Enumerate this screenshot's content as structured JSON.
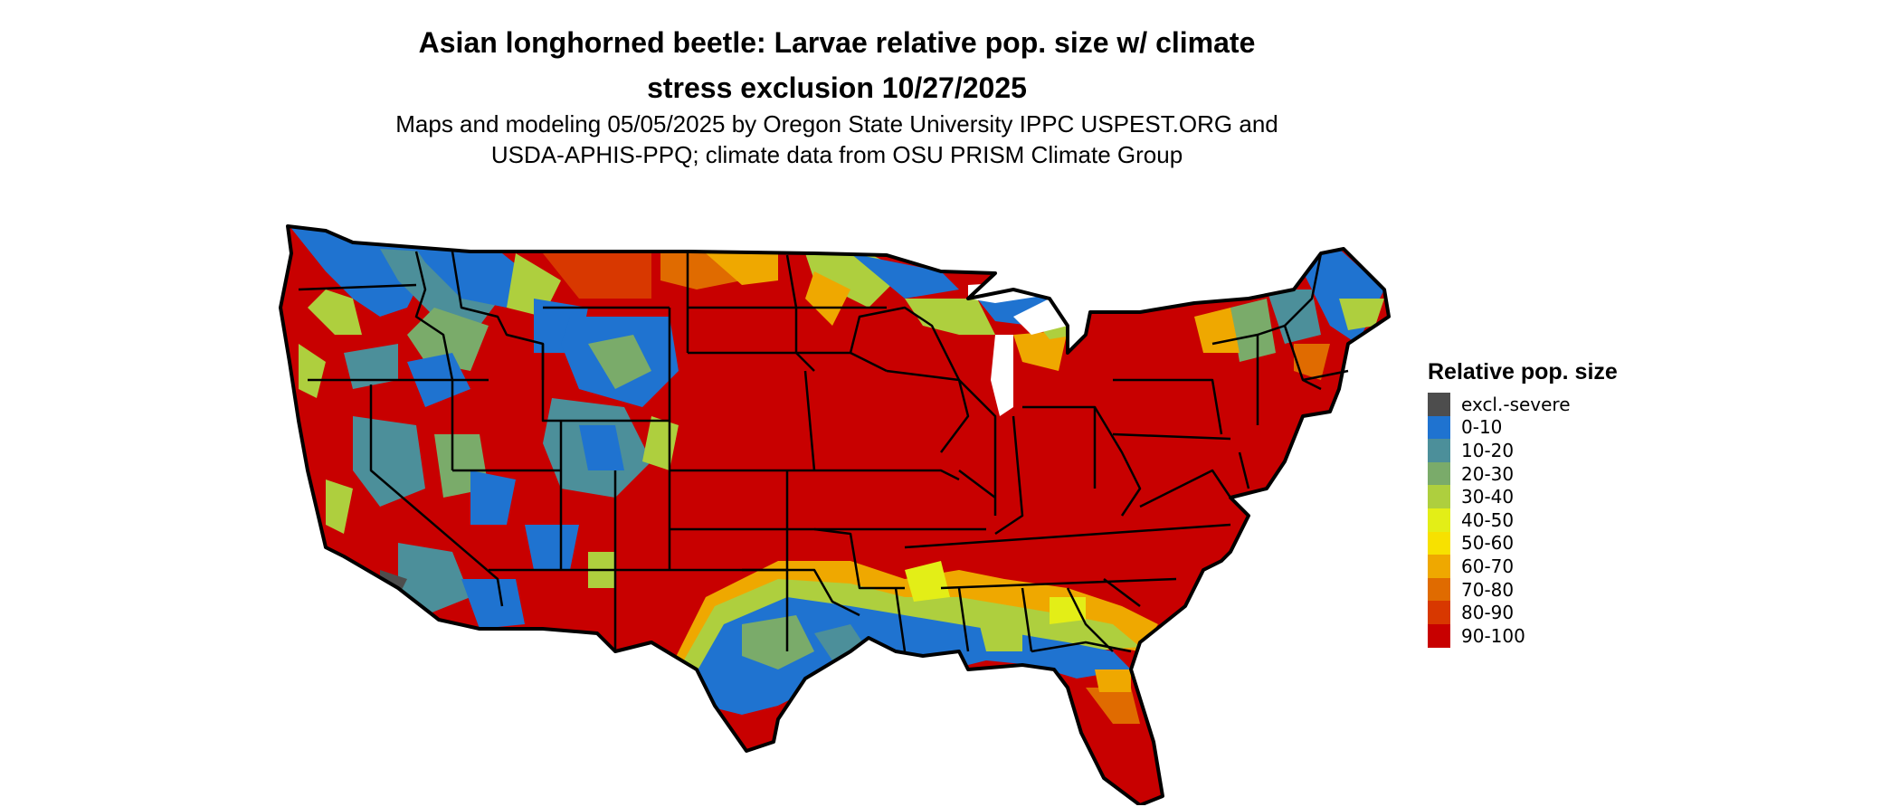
{
  "title_line1": "Asian longhorned beetle: Larvae relative pop. size w/ climate",
  "title_line2": "stress exclusion 10/27/2025",
  "subtitle_line1": "Maps and modeling 05/05/2025 by Oregon State University IPPC USPEST.ORG and",
  "subtitle_line2": "USDA-APHIS-PPQ; climate data from OSU PRISM Climate Group",
  "legend": {
    "title": "Relative pop. size",
    "items": [
      {
        "label": "excl.-severe",
        "color": "#4d4d4d"
      },
      {
        "label": "0-10",
        "color": "#1f73d0"
      },
      {
        "label": "10-20",
        "color": "#4c8f9a"
      },
      {
        "label": "20-30",
        "color": "#7aab6a"
      },
      {
        "label": "30-40",
        "color": "#aecf3e"
      },
      {
        "label": "40-50",
        "color": "#e3ee17"
      },
      {
        "label": "50-60",
        "color": "#f7e100"
      },
      {
        "label": "60-70",
        "color": "#efa800"
      },
      {
        "label": "70-80",
        "color": "#e06b00"
      },
      {
        "label": "80-90",
        "color": "#d83800"
      },
      {
        "label": "90-100",
        "color": "#c80000"
      }
    ]
  }
}
